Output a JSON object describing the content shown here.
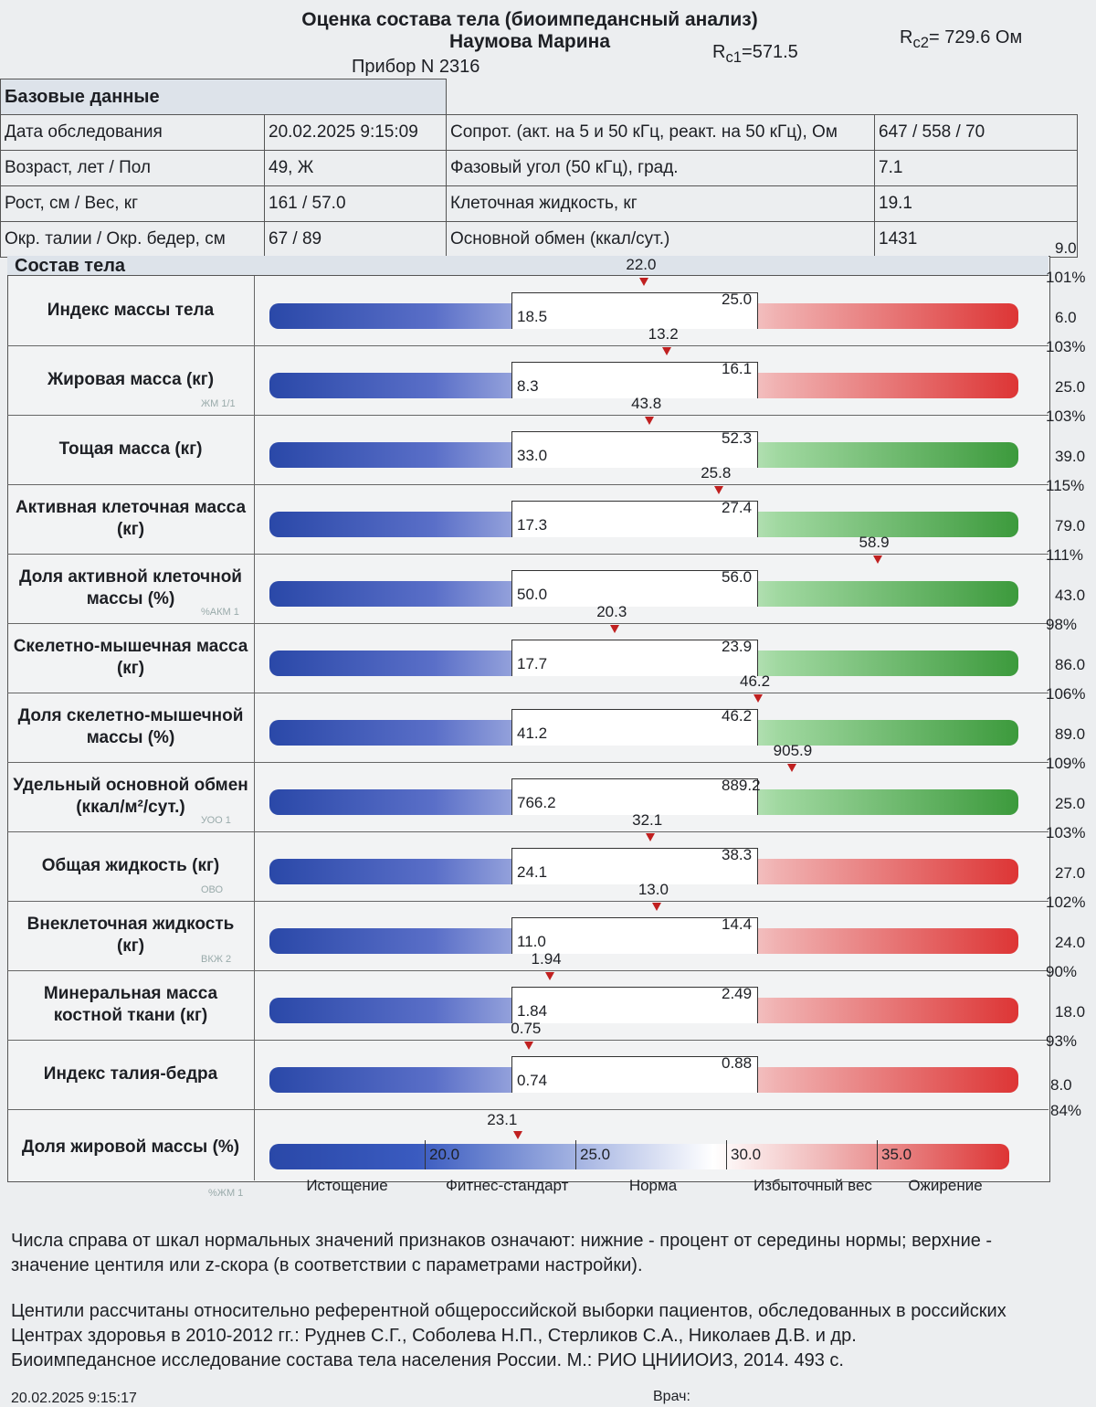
{
  "header": {
    "title": "Оценка состава тела (биоимпедансный анализ)",
    "name": "Наумова Марина",
    "device": "Прибор N 2316",
    "rc1": {
      "symbol": "R",
      "sub": "c1",
      "value": "=571.5"
    },
    "rc2": {
      "symbol": "R",
      "sub": "c2",
      "value": "= 729.6 Ом"
    }
  },
  "basic": {
    "title": "Базовые данные",
    "rows": [
      {
        "label": "Дата обследования",
        "value": "20.02.2025 9:15:09",
        "label2": "Сопрот. (акт. на 5 и 50 кГц, реакт. на 50 кГц), Ом",
        "value2": "647 / 558 / 70"
      },
      {
        "label": "Возраст, лет / Пол",
        "value": "49, Ж",
        "label2": "Фазовый угол (50 кГц), град.",
        "value2": "7.1"
      },
      {
        "label": "Рост, см / Вес, кг",
        "value": "161 / 57.0",
        "label2": "Клеточная жидкость, кг",
        "value2": "19.1"
      },
      {
        "label": "Окр. талии / Окр. бедер, см",
        "value": "67 / 89",
        "label2": "Основной обмен (ккал/сут.)",
        "value2": "1431"
      }
    ]
  },
  "composition": {
    "title": "Состав тела",
    "rows": [
      {
        "label": "Индекс массы тела",
        "value": "22.0",
        "low": "18.5",
        "high": "25.0",
        "centile": "9.0",
        "percent": "101%",
        "scheme": "red"
      },
      {
        "label": "Жировая масса (кг)",
        "value": "13.2",
        "low": "8.3",
        "high": "16.1",
        "centile": "6.0",
        "percent": "103%",
        "scheme": "red",
        "code": "ЖМ 1/1"
      },
      {
        "label": "Тощая масса (кг)",
        "value": "43.8",
        "low": "33.0",
        "high": "52.3",
        "centile": "25.0",
        "percent": "103%",
        "scheme": "green"
      },
      {
        "label": "Активная клеточная масса (кг)",
        "value": "25.8",
        "low": "17.3",
        "high": "27.4",
        "centile": "39.0",
        "percent": "115%",
        "scheme": "green"
      },
      {
        "label": "Доля активной клеточной массы (%)",
        "value": "58.9",
        "low": "50.0",
        "high": "56.0",
        "centile": "79.0",
        "percent": "111%",
        "scheme": "green",
        "code": "%АКМ 1"
      },
      {
        "label": "Скелетно-мышечная масса (кг)",
        "value": "20.3",
        "low": "17.7",
        "high": "23.9",
        "centile": "43.0",
        "percent": "98%",
        "scheme": "green"
      },
      {
        "label": "Доля скелетно-мышечной массы (%)",
        "value": "46.2",
        "low": "41.2",
        "high": "46.2",
        "centile": "86.0",
        "percent": "106%",
        "scheme": "green"
      },
      {
        "label": "Удельный основной обмен (ккал/м²/сут.)",
        "value": "905.9",
        "low": "766.2",
        "high": "889.2",
        "centile": "89.0",
        "percent": "109%",
        "scheme": "green",
        "code": "УОО 1"
      },
      {
        "label": "Общая жидкость (кг)",
        "value": "32.1",
        "low": "24.1",
        "high": "38.3",
        "centile": "25.0",
        "percent": "103%",
        "scheme": "red",
        "code": "ОВО"
      },
      {
        "label": "Внеклеточная жидкость (кг)",
        "value": "13.0",
        "low": "11.0",
        "high": "14.4",
        "centile": "27.0",
        "percent": "102%",
        "scheme": "red",
        "code": "ВКЖ 2"
      },
      {
        "label": "Минеральная масса костной ткани (кг)",
        "value": "1.94",
        "low": "1.84",
        "high": "2.49",
        "centile": "24.0",
        "percent": "90%",
        "scheme": "red"
      },
      {
        "label": "Индекс талия-бедра",
        "value": "0.75",
        "low": "0.74",
        "high": "0.88",
        "centile": "18.0",
        "percent": "93%",
        "scheme": "red"
      }
    ],
    "fat": {
      "label": "Доля жировой массы (%)",
      "value": "23.1",
      "ticks": [
        "20.0",
        "25.0",
        "30.0",
        "35.0"
      ],
      "centile": "8.0",
      "percent": "84%",
      "code": "%ЖМ 1",
      "zones": [
        "Истощение",
        "Фитнес-стандарт",
        "Норма",
        "Избыточный вес",
        "Ожирение"
      ]
    }
  },
  "notes": [
    "Числа справа от шкал нормальных значений признаков означают: нижние - процент от середины нормы; верхние - значение центиля или z-скора (в соответствии с параметрами настройки).",
    "Центили рассчитаны относительно референтной общероссийской выборки пациентов, обследованных в российских Центрах здоровья в 2010-2012 гг.: Руднев С.Г., Соболева Н.П., Стерликов С.А., Николаев Д.В. и др. Биоимпедансное исследование состава тела населения России. М.: РИО ЦНИИОИЗ, 2014. 493 с."
  ],
  "footer": {
    "date": "20.02.2025 9:15:17",
    "doctor": "Врач:"
  }
}
